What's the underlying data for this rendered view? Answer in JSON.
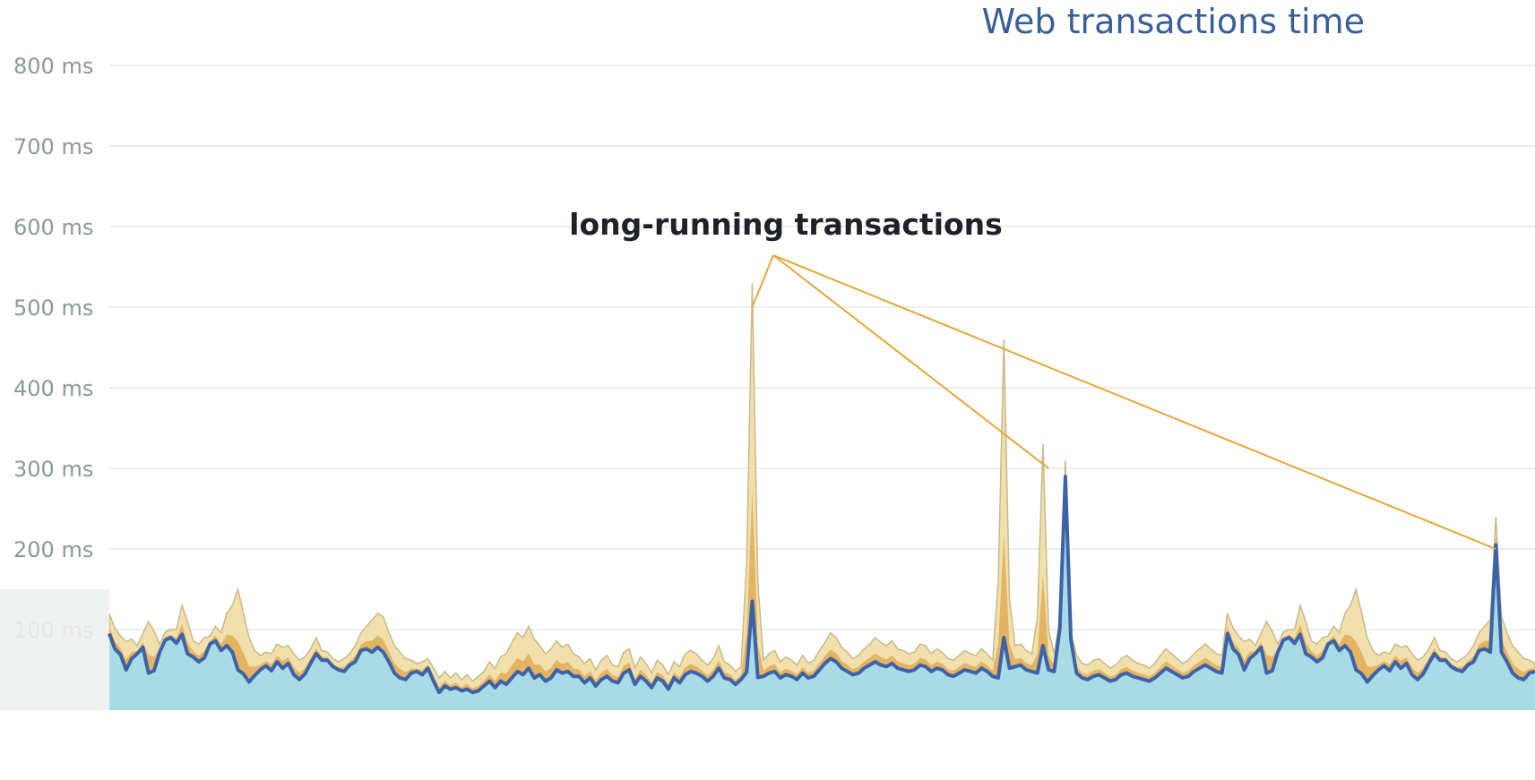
{
  "chart_data": {
    "type": "area",
    "title": "Web transactions time",
    "xlabel": "",
    "ylabel": "",
    "ylim": [
      0,
      800
    ],
    "grid": true,
    "y_ticks": [
      "100 ms",
      "200 ms",
      "300 ms",
      "400 ms",
      "500 ms",
      "600 ms",
      "700 ms",
      "800 ms"
    ],
    "y_tick_values": [
      100,
      200,
      300,
      400,
      500,
      600,
      700,
      800
    ],
    "annotation": {
      "text": "long-running transactions",
      "targets": [
        {
          "x": 115,
          "y": 500
        },
        {
          "x": 168,
          "y": 300
        },
        {
          "x": 248,
          "y": 200
        }
      ]
    },
    "colors": {
      "base_area": "#a9dbe6",
      "layer_mid": "#e5b463",
      "layer_top": "#f2e0ac",
      "layer_top_edge": "#c9b98a",
      "line": "#3d62a8",
      "annotation_line": "#e0a93a",
      "grid": "#e6e9e8",
      "title": "#3a5f96"
    },
    "series": [
      {
        "name": "",
        "kind": "line",
        "values": [
          95,
          76,
          69,
          50,
          64,
          70,
          78,
          46,
          49,
          72,
          87,
          90,
          83,
          94,
          70,
          66,
          60,
          65,
          82,
          86,
          74,
          80,
          72,
          50,
          45,
          35,
          43,
          50,
          55,
          49,
          60,
          52,
          58,
          44,
          38,
          45,
          58,
          70,
          62,
          62,
          54,
          50,
          48,
          56,
          60,
          74,
          76,
          72,
          78,
          72,
          60,
          46,
          40,
          38,
          46,
          48,
          44,
          52,
          36,
          22,
          30,
          26,
          28,
          24,
          26,
          22,
          24,
          30,
          36,
          28,
          36,
          32,
          40,
          48,
          44,
          52,
          40,
          44,
          36,
          40,
          50,
          46,
          48,
          42,
          42,
          34,
          40,
          30,
          38,
          42,
          36,
          34,
          46,
          50,
          32,
          42,
          36,
          28,
          40,
          36,
          26,
          40,
          34,
          44,
          48,
          46,
          42,
          36,
          42,
          52,
          40,
          38,
          32,
          38,
          40,
          36,
          38,
          42,
          46,
          48,
          40,
          44,
          42,
          38,
          46,
          40,
          42,
          50,
          58,
          64,
          60,
          52,
          48,
          44,
          46,
          52,
          56,
          60,
          56,
          54,
          58,
          52,
          50,
          48,
          50,
          56,
          54,
          48,
          52,
          50,
          44,
          42,
          46,
          50,
          48,
          46,
          52,
          48,
          42,
          40,
          46,
          52,
          54,
          56,
          50,
          48,
          46,
          44,
          50,
          48,
          52,
          48,
          44,
          46,
          40,
          38,
          42,
          44,
          40,
          36,
          38,
          44,
          46,
          42,
          40,
          38,
          36,
          40,
          46,
          52,
          48,
          44,
          40,
          42,
          48,
          52,
          56,
          52,
          48,
          46
        ]
      },
      {
        "name": "",
        "kind": "area_top",
        "values": [
          120,
          102,
          92,
          85,
          88,
          80,
          95,
          110,
          98,
          70,
          62,
          80,
          100,
          130,
          110,
          86,
          82,
          90,
          88,
          104,
          96,
          120,
          130,
          150,
          120,
          90,
          74,
          68,
          72,
          70,
          82,
          78,
          80,
          70,
          62,
          66,
          76,
          90,
          74,
          68,
          60,
          58,
          64,
          70,
          80,
          96,
          104,
          112,
          120,
          116,
          96,
          80,
          72,
          64,
          62,
          56,
          60,
          64,
          52,
          40,
          48,
          40,
          46,
          38,
          44,
          36,
          42,
          48,
          60,
          52,
          66,
          70,
          84,
          96,
          90,
          104,
          88,
          80,
          70,
          76,
          86,
          78,
          82,
          70,
          66,
          58,
          64,
          50,
          62,
          68,
          56,
          54,
          72,
          76,
          52,
          66,
          58,
          46,
          62,
          56,
          44,
          60,
          54,
          70,
          74,
          70,
          62,
          56,
          64,
          80,
          60,
          56,
          48,
          54,
          60,
          52,
          56,
          62,
          70,
          74,
          60,
          66,
          62,
          56,
          68,
          58,
          62,
          74,
          84,
          96,
          90,
          78,
          72,
          64,
          68,
          76,
          82,
          90,
          84,
          80,
          86,
          76,
          74,
          70,
          72,
          82,
          80,
          70,
          76,
          72,
          64,
          62,
          68,
          74,
          70,
          68,
          76,
          70,
          62,
          58,
          68,
          76,
          80,
          82,
          74,
          70,
          68,
          64,
          72,
          70,
          76,
          70,
          64,
          68,
          58,
          56,
          62,
          64,
          58,
          52,
          56,
          64,
          68,
          62,
          58,
          56,
          52,
          58,
          68,
          76,
          70,
          64,
          58,
          62,
          70,
          76,
          82,
          76,
          70,
          68
        ]
      },
      {
        "name": "",
        "kind": "area_base",
        "values": [
          60,
          56,
          52,
          50,
          52,
          54,
          56,
          50,
          48,
          52,
          54,
          56,
          54,
          56,
          52,
          50,
          48,
          50,
          54,
          56,
          52,
          54,
          52,
          46,
          44,
          40,
          42,
          44,
          46,
          44,
          48,
          46,
          48,
          44,
          40,
          42,
          46,
          50,
          48,
          48,
          46,
          44,
          44,
          46,
          48,
          52,
          52,
          50,
          52,
          50,
          48,
          44,
          42,
          40,
          42,
          44,
          42,
          44,
          40,
          34,
          36,
          34,
          36,
          34,
          36,
          34,
          34,
          36,
          38,
          36,
          38,
          36,
          40,
          42,
          40,
          42,
          40,
          40,
          38,
          38,
          42,
          40,
          42,
          40,
          40,
          38,
          40,
          36,
          38,
          40,
          38,
          38,
          42,
          42,
          36,
          40,
          38,
          36,
          40,
          38,
          34,
          40,
          38,
          40,
          42,
          42,
          40,
          38,
          40,
          42,
          40,
          38,
          36,
          38,
          40,
          38,
          38,
          40,
          42,
          42,
          40,
          42,
          40,
          38,
          42,
          40,
          40,
          42,
          44,
          46,
          44,
          42,
          42,
          40,
          42,
          42,
          44,
          46,
          44,
          44,
          44,
          42,
          42,
          42,
          42,
          44,
          44,
          42,
          42,
          42,
          40,
          40,
          42,
          42,
          42,
          40,
          42,
          42,
          40,
          40,
          42,
          42,
          44,
          44,
          42,
          42,
          40,
          40,
          42,
          42,
          42,
          42,
          40,
          42,
          40,
          38,
          40,
          40,
          40,
          38,
          38,
          40,
          42,
          40,
          40,
          38,
          38,
          40,
          42,
          42,
          42,
          40,
          40,
          40,
          42,
          42,
          44,
          42,
          42,
          42
        ]
      }
    ],
    "spikes": [
      {
        "x": 115,
        "top": 530,
        "line_peak": 135
      },
      {
        "x": 160,
        "top": 460,
        "line_peak": 90
      },
      {
        "x": 167,
        "top": 330,
        "line_peak": 80
      },
      {
        "x": 171,
        "top": 310,
        "line_peak": 290
      },
      {
        "x": 248,
        "top": 240,
        "line_peak": 205
      }
    ],
    "x_count": 256
  }
}
